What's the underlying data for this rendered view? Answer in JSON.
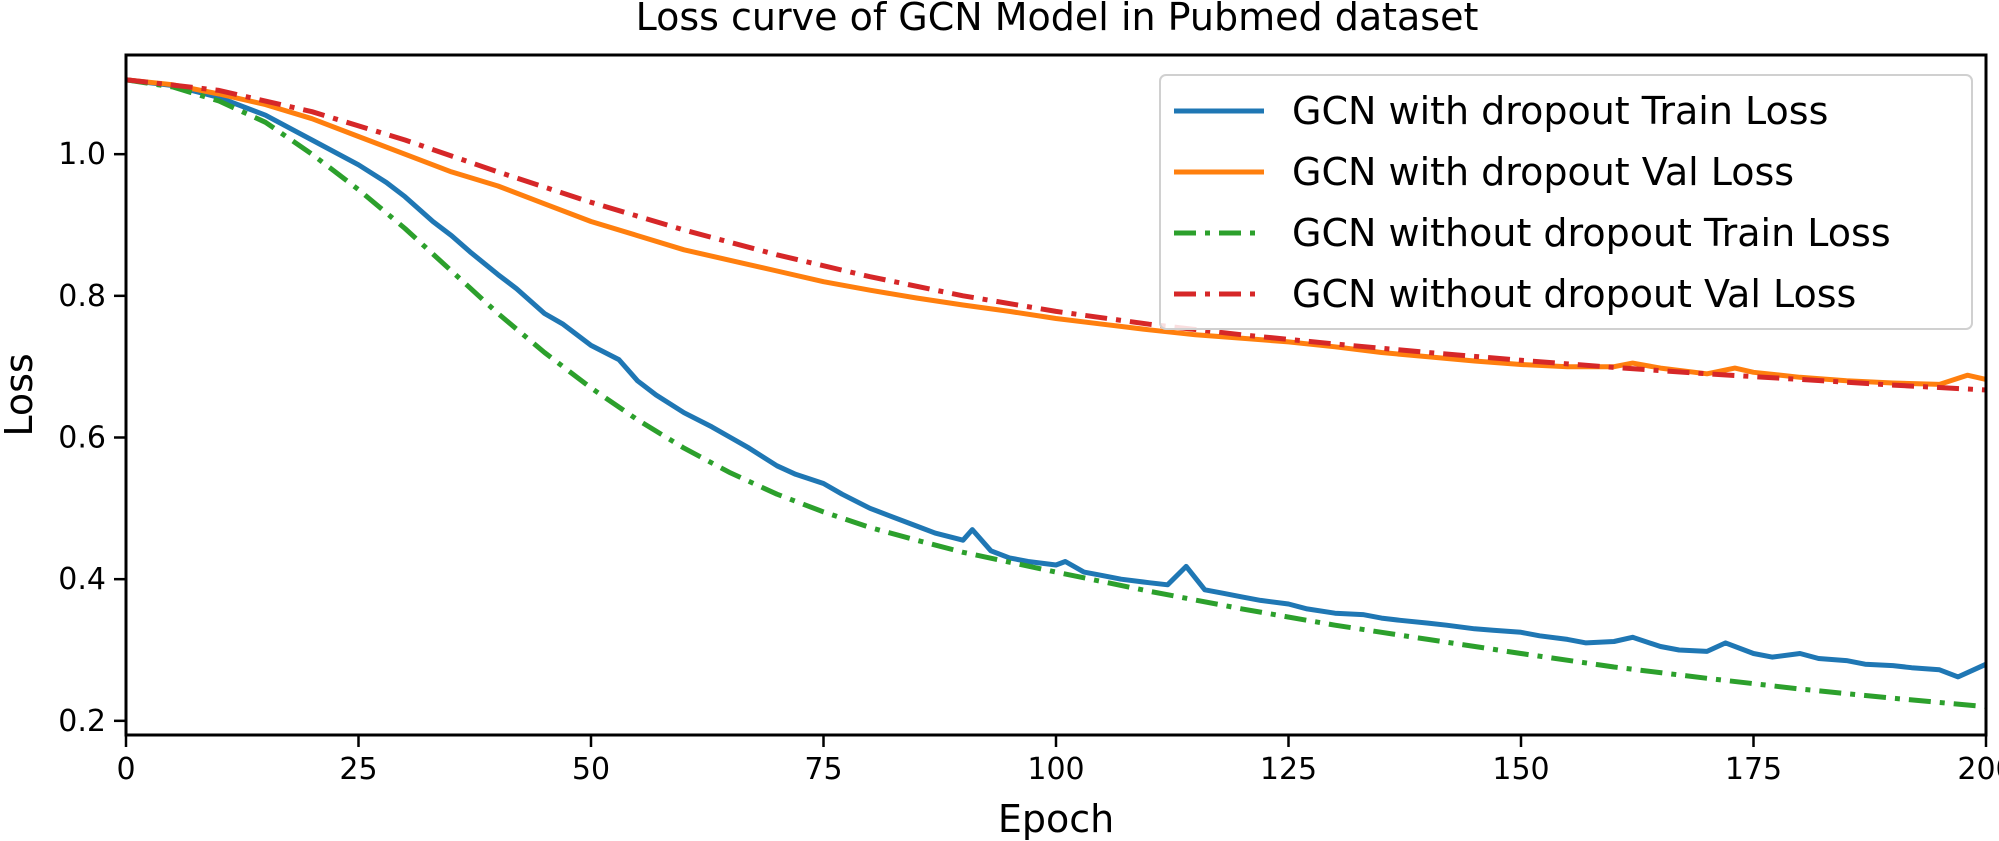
{
  "chart_data": {
    "type": "line",
    "title": "Loss curve of GCN Model in Pubmed dataset",
    "xlabel": "Epoch",
    "ylabel": "Loss",
    "xlim": [
      0,
      200
    ],
    "ylim": [
      0.18,
      1.14
    ],
    "xticks": [
      0,
      25,
      50,
      75,
      100,
      125,
      150,
      175,
      200
    ],
    "yticks": [
      0.2,
      0.4,
      0.6,
      0.8,
      1.0
    ],
    "xtick_labels": [
      "0",
      "25",
      "50",
      "75",
      "100",
      "125",
      "150",
      "175",
      "200"
    ],
    "ytick_labels": [
      "0.2",
      "0.4",
      "0.6",
      "0.8",
      "1.0"
    ],
    "grid": false,
    "legend_position": "top-right",
    "series": [
      {
        "name": "GCN with dropout Train Loss",
        "color": "#1f77b4",
        "style": "solid",
        "x": [
          0,
          5,
          10,
          15,
          20,
          25,
          28,
          30,
          33,
          35,
          37,
          40,
          42,
          45,
          47,
          50,
          53,
          55,
          57,
          60,
          63,
          65,
          67,
          70,
          72,
          75,
          77,
          80,
          82,
          85,
          87,
          90,
          91,
          93,
          95,
          97,
          100,
          101,
          103,
          105,
          107,
          110,
          112,
          114,
          116,
          118,
          120,
          122,
          125,
          127,
          130,
          133,
          135,
          137,
          140,
          142,
          145,
          147,
          150,
          152,
          155,
          157,
          160,
          162,
          165,
          167,
          170,
          172,
          175,
          177,
          180,
          182,
          185,
          187,
          190,
          192,
          195,
          197,
          200
        ],
        "y": [
          1.105,
          1.097,
          1.08,
          1.055,
          1.02,
          0.985,
          0.96,
          0.94,
          0.905,
          0.885,
          0.862,
          0.83,
          0.81,
          0.775,
          0.76,
          0.73,
          0.71,
          0.68,
          0.66,
          0.635,
          0.615,
          0.6,
          0.585,
          0.56,
          0.548,
          0.535,
          0.52,
          0.5,
          0.49,
          0.475,
          0.465,
          0.455,
          0.47,
          0.44,
          0.43,
          0.425,
          0.42,
          0.425,
          0.41,
          0.405,
          0.4,
          0.395,
          0.392,
          0.418,
          0.385,
          0.38,
          0.375,
          0.37,
          0.365,
          0.358,
          0.352,
          0.35,
          0.345,
          0.342,
          0.338,
          0.335,
          0.33,
          0.328,
          0.325,
          0.32,
          0.315,
          0.31,
          0.312,
          0.318,
          0.305,
          0.3,
          0.298,
          0.31,
          0.295,
          0.29,
          0.295,
          0.288,
          0.285,
          0.28,
          0.278,
          0.275,
          0.272,
          0.262,
          0.28
        ]
      },
      {
        "name": "GCN with dropout Val Loss",
        "color": "#ff7f0e",
        "style": "solid",
        "x": [
          0,
          5,
          10,
          15,
          20,
          25,
          30,
          35,
          40,
          45,
          50,
          55,
          60,
          65,
          70,
          75,
          80,
          85,
          90,
          95,
          100,
          105,
          110,
          115,
          120,
          125,
          130,
          135,
          140,
          145,
          150,
          155,
          160,
          162,
          165,
          170,
          173,
          175,
          180,
          185,
          190,
          195,
          198,
          200
        ],
        "y": [
          1.105,
          1.098,
          1.085,
          1.07,
          1.05,
          1.025,
          1.0,
          0.975,
          0.955,
          0.93,
          0.905,
          0.885,
          0.865,
          0.85,
          0.835,
          0.82,
          0.808,
          0.797,
          0.787,
          0.778,
          0.768,
          0.76,
          0.752,
          0.745,
          0.74,
          0.735,
          0.728,
          0.72,
          0.714,
          0.708,
          0.703,
          0.7,
          0.7,
          0.705,
          0.698,
          0.69,
          0.698,
          0.692,
          0.685,
          0.68,
          0.677,
          0.675,
          0.688,
          0.682
        ]
      },
      {
        "name": "GCN without dropout Train Loss",
        "color": "#2ca02c",
        "style": "dashdot",
        "x": [
          0,
          5,
          10,
          15,
          20,
          25,
          30,
          35,
          40,
          45,
          50,
          55,
          60,
          65,
          70,
          75,
          80,
          85,
          90,
          95,
          100,
          110,
          120,
          130,
          140,
          150,
          160,
          170,
          180,
          190,
          200
        ],
        "y": [
          1.105,
          1.095,
          1.075,
          1.045,
          1.0,
          0.95,
          0.895,
          0.835,
          0.775,
          0.72,
          0.67,
          0.625,
          0.585,
          0.55,
          0.52,
          0.495,
          0.473,
          0.455,
          0.438,
          0.424,
          0.41,
          0.383,
          0.358,
          0.335,
          0.315,
          0.295,
          0.276,
          0.26,
          0.245,
          0.232,
          0.22
        ]
      },
      {
        "name": "GCN without dropout Val Loss",
        "color": "#d62728",
        "style": "dashdot",
        "x": [
          0,
          10,
          20,
          30,
          40,
          50,
          60,
          70,
          80,
          90,
          100,
          110,
          120,
          130,
          140,
          150,
          160,
          170,
          180,
          190,
          200
        ],
        "y": [
          1.105,
          1.09,
          1.06,
          1.02,
          0.975,
          0.932,
          0.893,
          0.858,
          0.827,
          0.8,
          0.778,
          0.76,
          0.745,
          0.732,
          0.72,
          0.709,
          0.699,
          0.69,
          0.682,
          0.674,
          0.667
        ]
      }
    ]
  }
}
